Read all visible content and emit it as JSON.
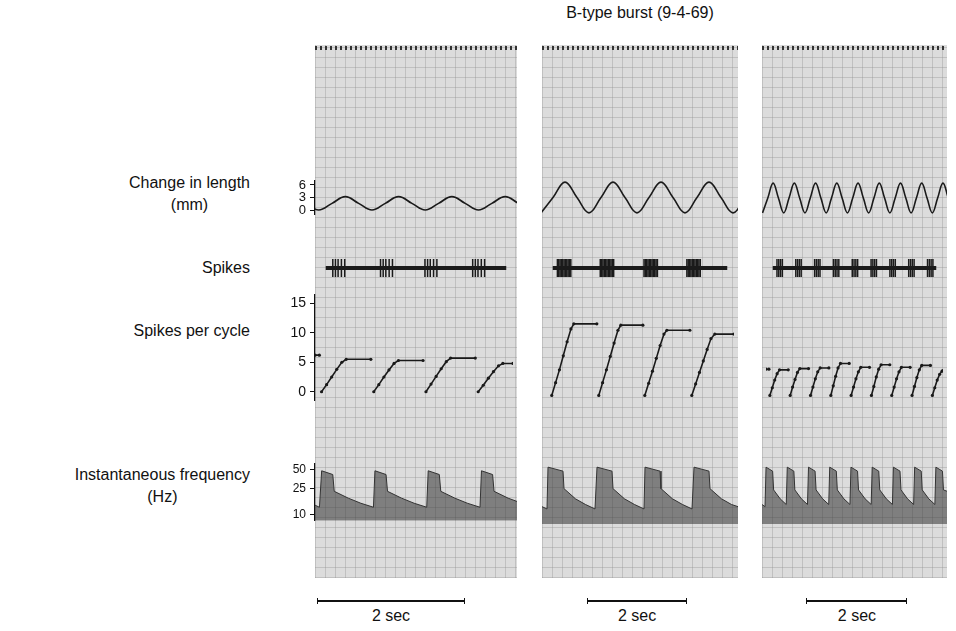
{
  "chart_data": {
    "type": "line",
    "title": "B-type burst (9-4-69)",
    "grid": true,
    "tick_labels": "y",
    "axes": [
      {
        "label": "Change in length (mm)",
        "ylim": [
          -1,
          7
        ],
        "yticks": [
          0,
          3,
          6
        ]
      },
      {
        "label": "Spikes",
        "ylim": [
          -1,
          1
        ]
      },
      {
        "label": "Spikes per cycle",
        "ylim": [
          -1.5,
          16.5
        ],
        "yticks": [
          0,
          5,
          10,
          15
        ]
      },
      {
        "label": "Instantaneous frequency (Hz)",
        "ylim": [
          8,
          63
        ],
        "yticks": [
          10,
          25,
          50
        ],
        "log": "y"
      }
    ],
    "panels": [
      {
        "xlim": [
          0,
          2.73
        ],
        "scale_bar": {
          "length": 2,
          "label": "2 sec"
        },
        "rows": [
          {
            "type": "line",
            "line_style": "smooth",
            "color": "#1a1a1a",
            "x": [
              -0.13,
              0.05,
              0.23,
              0.41,
              0.59,
              0.77,
              0.95,
              1.13,
              1.31,
              1.49,
              1.67,
              1.85,
              2.03,
              2.21,
              2.39,
              2.57,
              2.75
            ],
            "values": [
              1.6,
              0,
              1.6,
              3.2,
              1.6,
              0,
              1.6,
              3.2,
              1.6,
              0,
              1.6,
              3.2,
              1.6,
              0,
              1.6,
              3.2,
              1.6
            ]
          },
          {
            "type": "scatter",
            "marker": "vline",
            "color": "#1a1a1a",
            "baseline": 0,
            "x": [
              0.11,
              0.15,
              0.19,
              0.24,
              0.29,
              0.83,
              0.87,
              0.91,
              0.96,
              1.01,
              1.5,
              1.54,
              1.58,
              1.63,
              1.68,
              2.22,
              2.26,
              2.3,
              2.35,
              2.4
            ]
          },
          {
            "type": "line",
            "line_style": "solid",
            "marker": "dot",
            "color": "#1a1a1a",
            "x": [
              0,
              0.06,
              0.08,
              0.09,
              0.16,
              0.23,
              0.3,
              0.37,
              0.43,
              0.77,
              0.79,
              0.81,
              0.88,
              0.95,
              1.02,
              1.09,
              1.15,
              1.49,
              1.51,
              1.53,
              1.6,
              1.67,
              1.74,
              1.81,
              1.87,
              2.21,
              2.23,
              2.25,
              2.32,
              2.39,
              2.46,
              2.53,
              2.59,
              2.73
            ],
            "values": [
              6.2,
              6.2,
              null,
              0,
              1.2,
              2.5,
              3.8,
              5.0,
              5.5,
              5.5,
              null,
              0,
              1.2,
              2.5,
              3.7,
              4.8,
              5.3,
              5.3,
              null,
              0,
              1.3,
              2.6,
              3.9,
              5.1,
              5.7,
              5.7,
              null,
              0,
              1.1,
              2.3,
              3.4,
              4.4,
              4.8,
              4.8
            ]
          },
          {
            "type": "area",
            "line_style": "solid",
            "color": "#333333",
            "x": [
              0,
              0.06,
              0.09,
              0.24,
              0.26,
              0.45,
              0.62,
              0.79,
              0.81,
              0.96,
              0.98,
              1.17,
              1.34,
              1.51,
              1.53,
              1.68,
              1.7,
              1.89,
              2.06,
              2.23,
              2.25,
              2.4,
              2.42,
              2.61,
              2.73
            ],
            "values": [
              14,
              13,
              48,
              42,
              23,
              18,
              15,
              13,
              48,
              42,
              23,
              18,
              15,
              13,
              48,
              42,
              23,
              18,
              15,
              13,
              48,
              42,
              23,
              18,
              16
            ]
          }
        ]
      },
      {
        "xlim": [
          0,
          3.92
        ],
        "scale_bar": {
          "length": 2,
          "label": "2 sec"
        },
        "rows": [
          {
            "type": "line",
            "line_style": "smooth",
            "color": "#1a1a1a",
            "x": [
              -0.02,
              0.22,
              0.46,
              0.7,
              0.94,
              1.18,
              1.42,
              1.66,
              1.9,
              2.14,
              2.38,
              2.62,
              2.86,
              3.1,
              3.34,
              3.58,
              3.82,
              4.06
            ],
            "values": [
              0,
              3,
              6,
              3,
              0,
              3,
              6,
              3,
              0,
              3,
              6,
              3,
              0,
              3,
              6,
              3,
              0,
              3
            ]
          },
          {
            "type": "scatter",
            "marker": "vline",
            "color": "#1a1a1a",
            "baseline": 0,
            "x": [
              0.11,
              0.14,
              0.17,
              0.2,
              0.23,
              0.26,
              0.29,
              0.32,
              0.35,
              0.38,
              0.41,
              1.07,
              1.1,
              1.13,
              1.16,
              1.19,
              1.22,
              1.25,
              1.28,
              1.31,
              1.34,
              1.37,
              2.05,
              2.08,
              2.11,
              2.14,
              2.17,
              2.2,
              2.23,
              2.26,
              2.29,
              2.32,
              2.35,
              3.01,
              3.04,
              3.07,
              3.1,
              3.13,
              3.16,
              3.19,
              3.22,
              3.25,
              3.28,
              3.31
            ]
          },
          {
            "type": "line",
            "line_style": "solid",
            "marker": "dot",
            "color": "#1a1a1a",
            "x": [
              0.12,
              0.2,
              0.28,
              0.36,
              0.44,
              0.52,
              0.58,
              1.06,
              1.08,
              1.1,
              1.18,
              1.26,
              1.34,
              1.42,
              1.5,
              1.56,
              2.02,
              2.04,
              2.06,
              2.14,
              2.22,
              2.3,
              2.38,
              2.46,
              2.52,
              3.0,
              3.02,
              3.04,
              3.12,
              3.2,
              3.28,
              3.36,
              3.44,
              3.52,
              3.92
            ],
            "values": [
              0,
              2,
              4,
              6.2,
              8.4,
              10.4,
              11.2,
              11.2,
              null,
              0,
              2,
              4,
              6.1,
              8.2,
              10.2,
              11.0,
              11.0,
              null,
              0,
              1.9,
              3.8,
              5.8,
              7.8,
              9.6,
              10.2,
              10.2,
              null,
              0,
              1.8,
              3.6,
              5.4,
              7.2,
              8.9,
              9.6,
              9.6
            ]
          },
          {
            "type": "area",
            "line_style": "solid",
            "color": "#333333",
            "x": [
              0,
              0.1,
              0.12,
              0.42,
              0.44,
              0.67,
              0.87,
              1.06,
              1.1,
              1.4,
              1.42,
              1.65,
              1.85,
              2.04,
              2.06,
              2.36,
              2.38,
              2.61,
              2.81,
              3.0,
              3.04,
              3.34,
              3.36,
              3.59,
              3.79,
              3.92
            ],
            "values": [
              14,
              13,
              50,
              44,
              25,
              18,
              15,
              13,
              50,
              44,
              25,
              18,
              15,
              13,
              50,
              44,
              25,
              18,
              15,
              13,
              50,
              44,
              25,
              18,
              15,
              14
            ]
          }
        ]
      },
      {
        "xlim": [
          0,
          3.66
        ],
        "scale_bar": {
          "length": 2,
          "label": "2 sec"
        },
        "rows": [
          {
            "type": "line",
            "line_style": "smooth",
            "color": "#1a1a1a",
            "x": [
              0.01,
              0.115,
              0.22,
              0.325,
              0.43,
              0.535,
              0.64,
              0.745,
              0.85,
              0.955,
              1.06,
              1.165,
              1.27,
              1.375,
              1.48,
              1.585,
              1.69,
              1.795,
              1.9,
              2.005,
              2.11,
              2.215,
              2.32,
              2.425,
              2.53,
              2.635,
              2.74,
              2.845,
              2.95,
              3.055,
              3.16,
              3.265,
              3.37,
              3.475,
              3.58,
              3.685
            ],
            "values": [
              0,
              2.9,
              5.8,
              2.9,
              0,
              2.9,
              5.8,
              2.9,
              0,
              2.9,
              5.8,
              2.9,
              0,
              2.9,
              5.8,
              2.9,
              0,
              2.9,
              5.8,
              2.9,
              0,
              2.9,
              5.8,
              2.9,
              0,
              2.9,
              5.8,
              2.9,
              0,
              2.9,
              5.8,
              2.9,
              0,
              2.9,
              5.8,
              2.9
            ]
          },
          {
            "type": "scatter",
            "marker": "vline",
            "color": "#1a1a1a",
            "baseline": 0,
            "x": [
              0.1,
              0.14,
              0.18,
              0.22,
              0.52,
              0.56,
              0.6,
              0.64,
              0.94,
              0.98,
              1.02,
              1.06,
              1.36,
              1.4,
              1.44,
              1.48,
              1.78,
              1.82,
              1.86,
              1.9,
              2.2,
              2.24,
              2.28,
              2.32,
              2.62,
              2.66,
              2.7,
              2.74,
              3.04,
              3.08,
              3.12,
              3.16,
              3.46,
              3.5,
              3.54,
              3.58
            ]
          },
          {
            "type": "line",
            "line_style": "solid",
            "marker": "dot",
            "color": "#1a1a1a",
            "x": [
              0,
              0.06,
              0.07,
              0.08,
              0.13,
              0.18,
              0.23,
              0.28,
              0.46,
              0.48,
              0.5,
              0.55,
              0.6,
              0.65,
              0.7,
              0.88,
              0.9,
              0.92,
              0.97,
              1.02,
              1.07,
              1.12,
              1.3,
              1.32,
              1.34,
              1.39,
              1.44,
              1.49,
              1.54,
              1.72,
              1.74,
              1.76,
              1.81,
              1.86,
              1.91,
              1.96,
              2.14,
              2.16,
              2.18,
              2.23,
              2.28,
              2.33,
              2.38,
              2.56,
              2.58,
              2.6,
              2.65,
              2.7,
              2.75,
              2.8,
              2.98,
              3.0,
              3.02,
              3.07,
              3.12,
              3.17,
              3.22,
              3.4,
              3.42,
              3.44,
              3.49,
              3.54,
              3.59,
              3.64,
              3.66
            ],
            "values": [
              4.1,
              4.1,
              null,
              0,
              1.2,
              2.4,
              3.4,
              4.0,
              4.0,
              null,
              0,
              1.3,
              2.5,
              3.6,
              4.2,
              4.2,
              null,
              0,
              1.3,
              2.6,
              3.7,
              4.3,
              4.3,
              null,
              0,
              1.5,
              3.0,
              4.3,
              5.0,
              5.0,
              null,
              0,
              1.3,
              2.6,
              3.7,
              4.4,
              4.4,
              null,
              0,
              1.4,
              2.9,
              4.1,
              4.8,
              4.8,
              null,
              0,
              1.3,
              2.6,
              3.7,
              4.4,
              4.4,
              null,
              0,
              1.4,
              2.8,
              4.0,
              4.7,
              4.7,
              null,
              0,
              1.2,
              2.4,
              3.3,
              3.8,
              3.9
            ]
          },
          {
            "type": "area",
            "line_style": "solid",
            "color": "#333333",
            "x": [
              0,
              0.06,
              0.08,
              0.21,
              0.23,
              0.36,
              0.48,
              0.5,
              0.63,
              0.65,
              0.78,
              0.9,
              0.92,
              1.05,
              1.07,
              1.2,
              1.32,
              1.34,
              1.47,
              1.49,
              1.62,
              1.74,
              1.76,
              1.89,
              1.91,
              2.04,
              2.16,
              2.18,
              2.31,
              2.33,
              2.46,
              2.58,
              2.6,
              2.73,
              2.75,
              2.88,
              3.0,
              3.02,
              3.15,
              3.17,
              3.3,
              3.42,
              3.44,
              3.57,
              3.59,
              3.66
            ],
            "values": [
              15,
              14,
              50,
              44,
              24,
              18,
              15,
              50,
              44,
              24,
              18,
              15,
              50,
              44,
              24,
              18,
              15,
              50,
              44,
              24,
              18,
              15,
              50,
              44,
              24,
              18,
              15,
              50,
              44,
              24,
              18,
              15,
              50,
              44,
              24,
              18,
              15,
              50,
              44,
              24,
              18,
              15,
              50,
              44,
              24,
              23
            ]
          }
        ]
      }
    ]
  }
}
